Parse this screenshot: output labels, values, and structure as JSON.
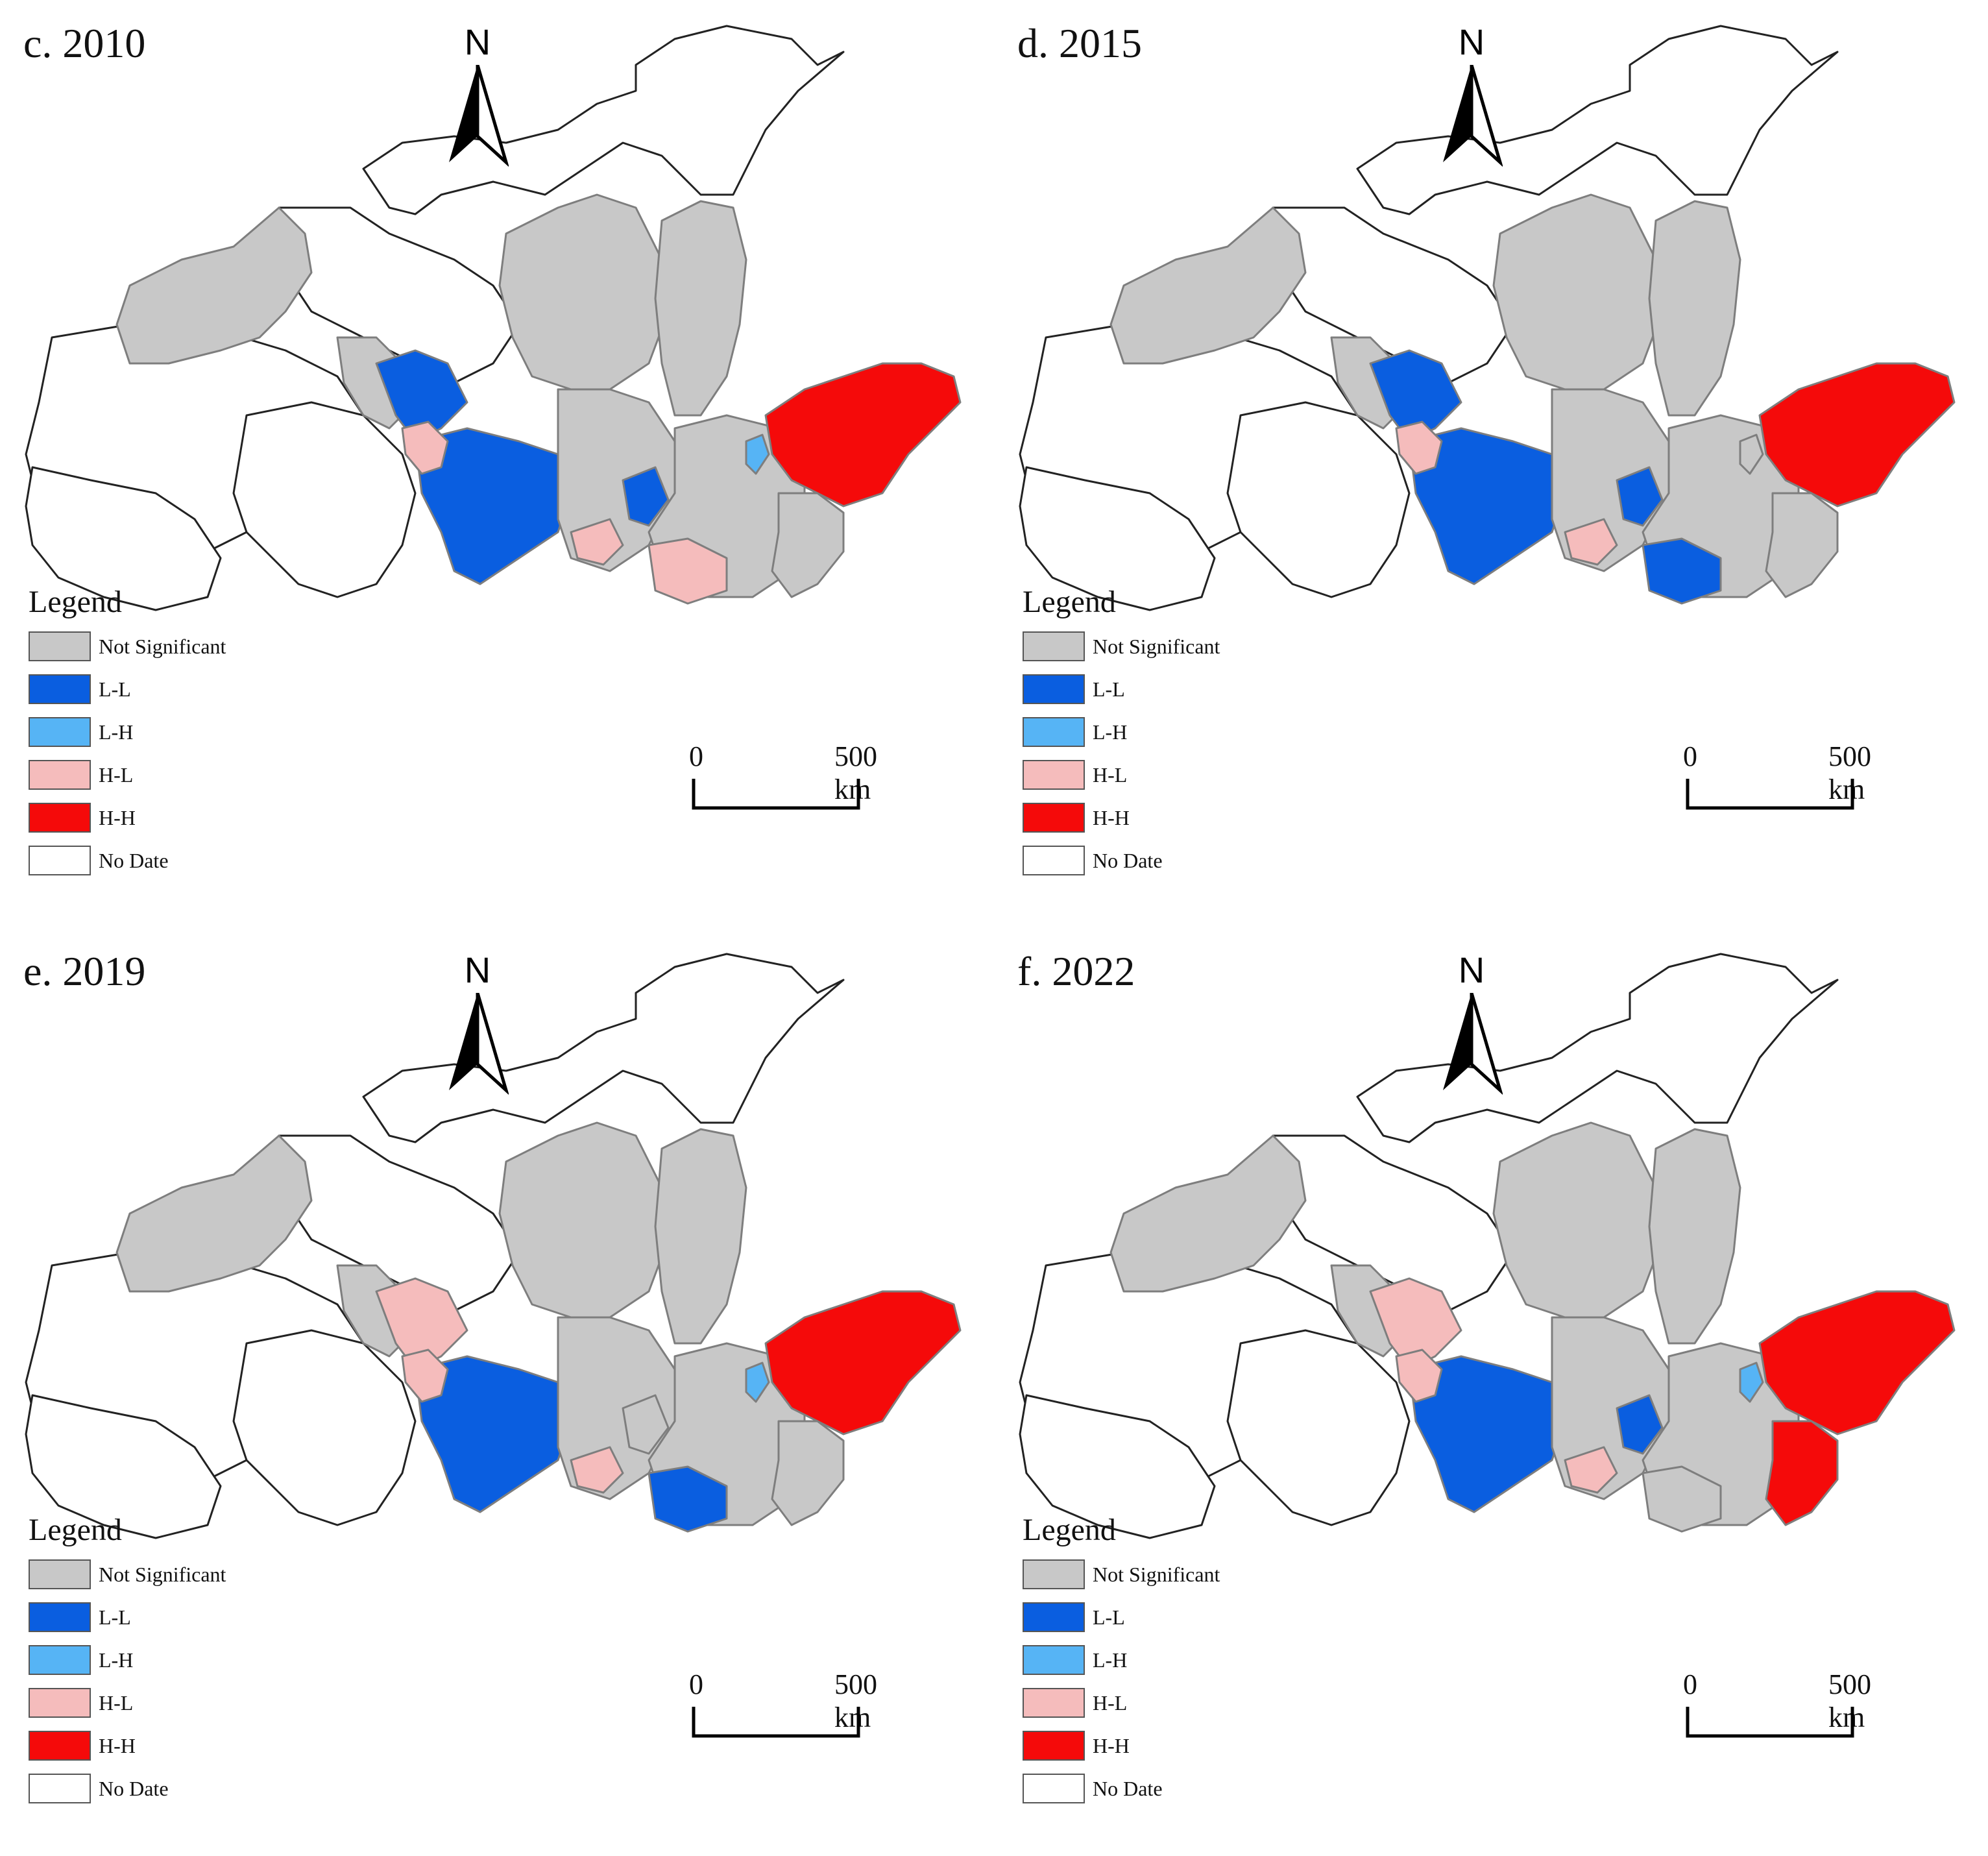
{
  "panels": [
    {
      "title": "c. 2010",
      "regions": {
        "qinghai_west": "nodata",
        "qinghai_mid": "nodata",
        "tibet_w": "nodata",
        "gansu_west": "ns",
        "innermongolia_w": "nodata",
        "innermongolia_e": "nodata",
        "ningxia": "ns",
        "shaanxi_n": "ns",
        "gansu_mid": "LL",
        "gansu_s": "LL",
        "gansu_hl": "HL",
        "shaanxi_c": "ns",
        "shanxi": "ns",
        "henan": "ns",
        "henan_hl": "HL",
        "henan_s": "HL",
        "shandong": "HH",
        "shandong_lh": "LH",
        "shandong_s": "ns",
        "henan_ll": "LL"
      }
    },
    {
      "title": "d. 2015",
      "regions": {
        "qinghai_west": "nodata",
        "qinghai_mid": "nodata",
        "tibet_w": "nodata",
        "gansu_west": "ns",
        "innermongolia_w": "nodata",
        "innermongolia_e": "nodata",
        "ningxia": "ns",
        "shaanxi_n": "ns",
        "gansu_mid": "LL",
        "gansu_s": "LL",
        "gansu_hl": "HL",
        "shaanxi_c": "ns",
        "shanxi": "ns",
        "henan": "ns",
        "henan_hl": "HL",
        "henan_s": "LL",
        "shandong": "HH",
        "shandong_lh": "ns",
        "shandong_s": "ns",
        "henan_ll": "LL"
      }
    },
    {
      "title": "e. 2019",
      "regions": {
        "qinghai_west": "nodata",
        "qinghai_mid": "nodata",
        "tibet_w": "nodata",
        "gansu_west": "ns",
        "innermongolia_w": "nodata",
        "innermongolia_e": "nodata",
        "ningxia": "ns",
        "shaanxi_n": "ns",
        "gansu_mid": "HL",
        "gansu_s": "LL",
        "gansu_hl": "HL",
        "shaanxi_c": "ns",
        "shanxi": "ns",
        "henan": "ns",
        "henan_hl": "HL",
        "henan_s": "LL",
        "shandong": "HH",
        "shandong_lh": "LH",
        "shandong_s": "ns",
        "henan_ll": "ns"
      }
    },
    {
      "title": "f. 2022",
      "regions": {
        "qinghai_west": "nodata",
        "qinghai_mid": "nodata",
        "tibet_w": "nodata",
        "gansu_west": "ns",
        "innermongolia_w": "nodata",
        "innermongolia_e": "nodata",
        "ningxia": "ns",
        "shaanxi_n": "ns",
        "gansu_mid": "HL",
        "gansu_s": "LL",
        "gansu_hl": "HL",
        "shaanxi_c": "ns",
        "shanxi": "ns",
        "henan": "ns",
        "henan_hl": "HL",
        "henan_s": "ns",
        "shandong": "HH",
        "shandong_lh": "LH",
        "shandong_s": "HH",
        "henan_ll": "LL"
      }
    }
  ],
  "north_label": "N",
  "legend": {
    "title": "Legend",
    "items": [
      {
        "key": "ns",
        "label": "Not Significant",
        "color": "#c8c8c8"
      },
      {
        "key": "LL",
        "label": "L-L",
        "color": "#0a5ee0"
      },
      {
        "key": "LH",
        "label": "L-H",
        "color": "#56b4f5"
      },
      {
        "key": "HL",
        "label": "H-L",
        "color": "#f5bcbc"
      },
      {
        "key": "HH",
        "label": "H-H",
        "color": "#f50a0a"
      },
      {
        "key": "nodata",
        "label": "No Date",
        "color": "#ffffff"
      }
    ]
  },
  "scale": {
    "start": "0",
    "end": "500 km"
  }
}
